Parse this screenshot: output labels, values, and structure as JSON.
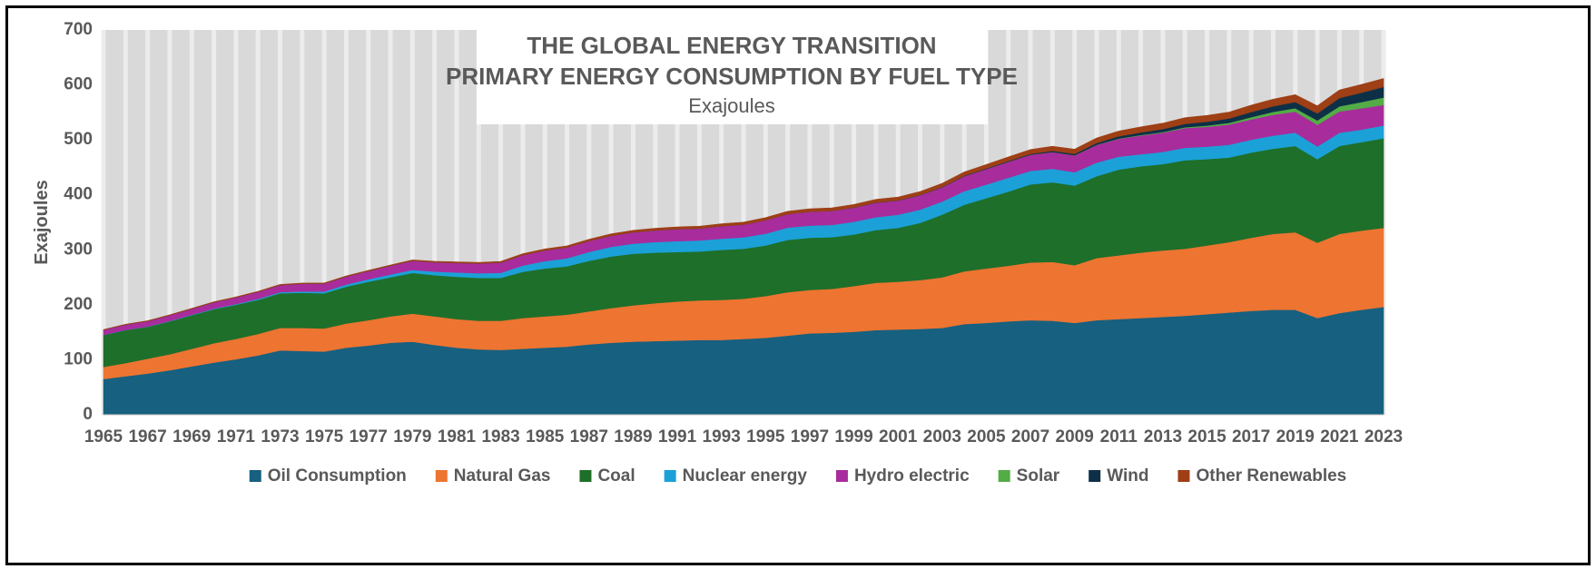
{
  "chart_data": {
    "type": "area",
    "stacked": true,
    "title": "THE GLOBAL ENERGY TRANSITION",
    "subtitle": "PRIMARY ENERGY CONSUMPTION BY FUEL TYPE",
    "unit_label": "Exajoules",
    "ylabel": "Exajoules",
    "xlabel": "",
    "ylim": [
      0,
      700
    ],
    "yticks": [
      0,
      100,
      200,
      300,
      400,
      500,
      600,
      700
    ],
    "x_tick_labels": [
      "1965",
      "1967",
      "1969",
      "1971",
      "1973",
      "1975",
      "1977",
      "1979",
      "1981",
      "1983",
      "1985",
      "1987",
      "1989",
      "1991",
      "1993",
      "1995",
      "1997",
      "1999",
      "2001",
      "2003",
      "2005",
      "2007",
      "2009",
      "2011",
      "2013",
      "2015",
      "2017",
      "2019",
      "2021",
      "2023"
    ],
    "x": [
      1965,
      1966,
      1967,
      1968,
      1969,
      1970,
      1971,
      1972,
      1973,
      1974,
      1975,
      1976,
      1977,
      1978,
      1979,
      1980,
      1981,
      1982,
      1983,
      1984,
      1985,
      1986,
      1987,
      1988,
      1989,
      1990,
      1991,
      1992,
      1993,
      1994,
      1995,
      1996,
      1997,
      1998,
      1999,
      2000,
      2001,
      2002,
      2003,
      2004,
      2005,
      2006,
      2007,
      2008,
      2009,
      2010,
      2011,
      2012,
      2013,
      2014,
      2015,
      2016,
      2017,
      2018,
      2019,
      2020,
      2021,
      2022,
      2023
    ],
    "grid": "vertical bands",
    "legend_position": "bottom",
    "series": [
      {
        "name": "Oil Consumption",
        "color": "#17607F",
        "values": [
          65,
          70,
          75,
          81,
          88,
          95,
          101,
          108,
          117,
          116,
          115,
          122,
          126,
          131,
          133,
          127,
          122,
          119,
          118,
          120,
          122,
          124,
          128,
          131,
          133,
          134,
          135,
          136,
          136,
          138,
          140,
          144,
          148,
          149,
          151,
          154,
          155,
          156,
          158,
          165,
          167,
          170,
          172,
          171,
          167,
          172,
          174,
          176,
          178,
          180,
          183,
          186,
          189,
          191,
          191,
          176,
          185,
          191,
          196
        ]
      },
      {
        "name": "Natural Gas",
        "color": "#ED7431",
        "values": [
          22,
          24,
          27,
          29,
          32,
          35,
          37,
          39,
          41,
          42,
          42,
          44,
          46,
          48,
          51,
          52,
          52,
          52,
          53,
          56,
          57,
          58,
          60,
          63,
          66,
          69,
          71,
          72,
          73,
          73,
          76,
          79,
          79,
          80,
          83,
          86,
          87,
          89,
          92,
          96,
          99,
          101,
          105,
          107,
          105,
          113,
          116,
          119,
          121,
          122,
          125,
          128,
          133,
          138,
          141,
          137,
          144,
          144,
          144
        ]
      },
      {
        "name": "Coal",
        "color": "#1E6F2A",
        "values": [
          58,
          60,
          58,
          60,
          61,
          62,
          62,
          62,
          63,
          64,
          64,
          67,
          70,
          71,
          74,
          75,
          77,
          78,
          78,
          84,
          87,
          88,
          92,
          94,
          94,
          92,
          90,
          89,
          91,
          91,
          92,
          95,
          95,
          94,
          94,
          96,
          98,
          104,
          114,
          121,
          128,
          135,
          142,
          145,
          145,
          149,
          156,
          157,
          157,
          161,
          157,
          154,
          155,
          155,
          157,
          152,
          160,
          161,
          163
        ]
      },
      {
        "name": "Nuclear energy",
        "color": "#1BA1D8",
        "values": [
          0.2,
          0.3,
          0.4,
          0.6,
          0.8,
          1.0,
          1.3,
          1.7,
          2.0,
          2.5,
          3.3,
          3.9,
          4.5,
          5.1,
          5.5,
          6.5,
          7.9,
          8.4,
          9.3,
          11.4,
          13.4,
          14.6,
          16.2,
          17.4,
          18.3,
          19.1,
          19.8,
          20.0,
          20.2,
          20.8,
          21.5,
          22.3,
          22.1,
          22.4,
          23.1,
          23.4,
          24.0,
          24.2,
          23.8,
          24.7,
          24.7,
          25.1,
          24.6,
          24.5,
          24.1,
          24.7,
          23.5,
          21.9,
          22.2,
          22.6,
          22.8,
          23.2,
          23.4,
          23.8,
          24.3,
          23.0,
          24.0,
          22.6,
          23.3
        ]
      },
      {
        "name": "Hydro electric",
        "color": "#A82C9C",
        "values": [
          9.2,
          9.7,
          10.0,
          10.5,
          11.1,
          11.6,
          12.2,
          12.8,
          13.0,
          14.0,
          14.3,
          14.5,
          14.9,
          15.9,
          16.6,
          17.0,
          17.3,
          17.8,
          18.6,
          19.1,
          19.7,
          19.9,
          20.0,
          20.4,
          20.7,
          21.4,
          22.0,
          22.0,
          23.0,
          23.2,
          24.4,
          24.9,
          25.3,
          25.5,
          25.8,
          26.4,
          25.7,
          26.1,
          26.1,
          27.3,
          28.3,
          29.1,
          29.4,
          30.4,
          30.7,
          32.2,
          32.5,
          34.1,
          35.0,
          35.9,
          36.0,
          36.8,
          36.9,
          38.0,
          38.1,
          39.5,
          38.8,
          38.9,
          37.3
        ]
      },
      {
        "name": "Solar",
        "color": "#53AC45",
        "values": [
          0,
          0,
          0,
          0,
          0,
          0,
          0,
          0,
          0,
          0,
          0,
          0,
          0,
          0,
          0,
          0,
          0,
          0,
          0,
          0,
          0,
          0,
          0,
          0,
          0,
          0,
          0,
          0,
          0,
          0,
          0,
          0,
          0,
          0,
          0,
          0,
          0,
          0,
          0,
          0,
          0,
          0,
          0,
          0.1,
          0.2,
          0.3,
          0.6,
          0.9,
          1.2,
          1.6,
          2.3,
          3.0,
          4.1,
          5.2,
          6.3,
          7.9,
          9.4,
          11.4,
          13.7
        ]
      },
      {
        "name": "Wind",
        "color": "#0D3047",
        "values": [
          0,
          0,
          0,
          0,
          0,
          0,
          0,
          0,
          0,
          0,
          0,
          0,
          0,
          0,
          0,
          0,
          0,
          0,
          0,
          0,
          0,
          0,
          0,
          0,
          0,
          0,
          0,
          0,
          0,
          0,
          0,
          0,
          0.1,
          0.1,
          0.2,
          0.3,
          0.4,
          0.5,
          0.6,
          0.8,
          1.0,
          1.2,
          1.6,
          2.0,
          2.6,
          3.2,
          4.0,
          4.7,
          5.4,
          6.1,
          7.1,
          8.0,
          9.3,
          10.2,
          11.3,
          12.8,
          15.0,
          17.0,
          19.0
        ]
      },
      {
        "name": "Other Renewables",
        "color": "#9E3F16",
        "values": [
          0.5,
          0.6,
          0.6,
          0.7,
          0.7,
          0.8,
          0.8,
          0.9,
          1.0,
          1.0,
          1.1,
          1.2,
          1.3,
          1.4,
          1.5,
          1.6,
          1.8,
          1.9,
          2.1,
          2.4,
          2.6,
          2.8,
          3.0,
          3.2,
          3.4,
          3.7,
          3.9,
          4.0,
          4.2,
          4.4,
          4.7,
          4.9,
          5.1,
          5.3,
          5.5,
          5.7,
          5.9,
          6.2,
          6.5,
          6.8,
          7.1,
          7.6,
          7.9,
          8.3,
          8.5,
          9.1,
          9.5,
          10.0,
          10.6,
          11.1,
          11.4,
          11.6,
          12.4,
          12.9,
          13.3,
          13.8,
          14.5,
          14.9,
          15.3
        ]
      }
    ]
  }
}
